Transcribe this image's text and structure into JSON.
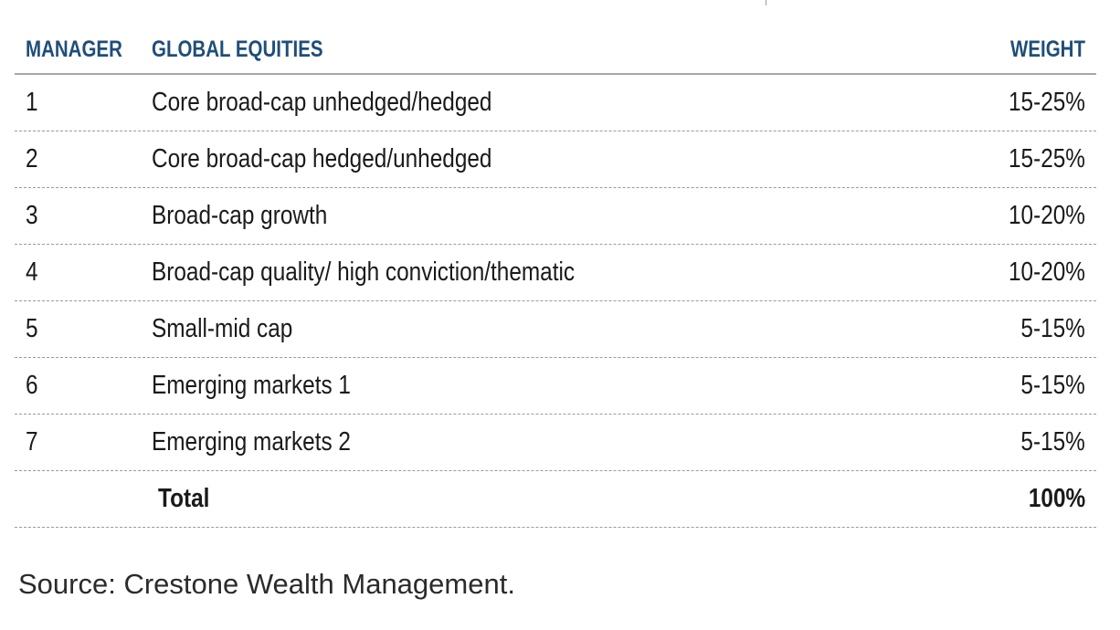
{
  "table": {
    "headers": {
      "manager": "MANAGER",
      "equities": "GLOBAL EQUITIES",
      "weight": "WEIGHT"
    },
    "rows": [
      {
        "manager": "1",
        "description": "Core broad-cap unhedged/hedged",
        "weight": "15-25%"
      },
      {
        "manager": "2",
        "description": "Core broad-cap hedged/unhedged",
        "weight": "15-25%"
      },
      {
        "manager": "3",
        "description": "Broad-cap growth",
        "weight": "10-20%"
      },
      {
        "manager": "4",
        "description": "Broad-cap quality/ high conviction/thematic",
        "weight": "10-20%"
      },
      {
        "manager": "5",
        "description": "Small-mid cap",
        "weight": "5-15%"
      },
      {
        "manager": "6",
        "description": "Emerging markets 1",
        "weight": "5-15%"
      },
      {
        "manager": "7",
        "description": "Emerging markets 2",
        "weight": "5-15%"
      }
    ],
    "total": {
      "label": "Total",
      "weight": "100%"
    }
  },
  "source": "Source: Crestone Wealth Management.",
  "colors": {
    "header_text": "#1f4e79",
    "body_text": "#1a1a1a",
    "rule": "#a6a6a6"
  }
}
